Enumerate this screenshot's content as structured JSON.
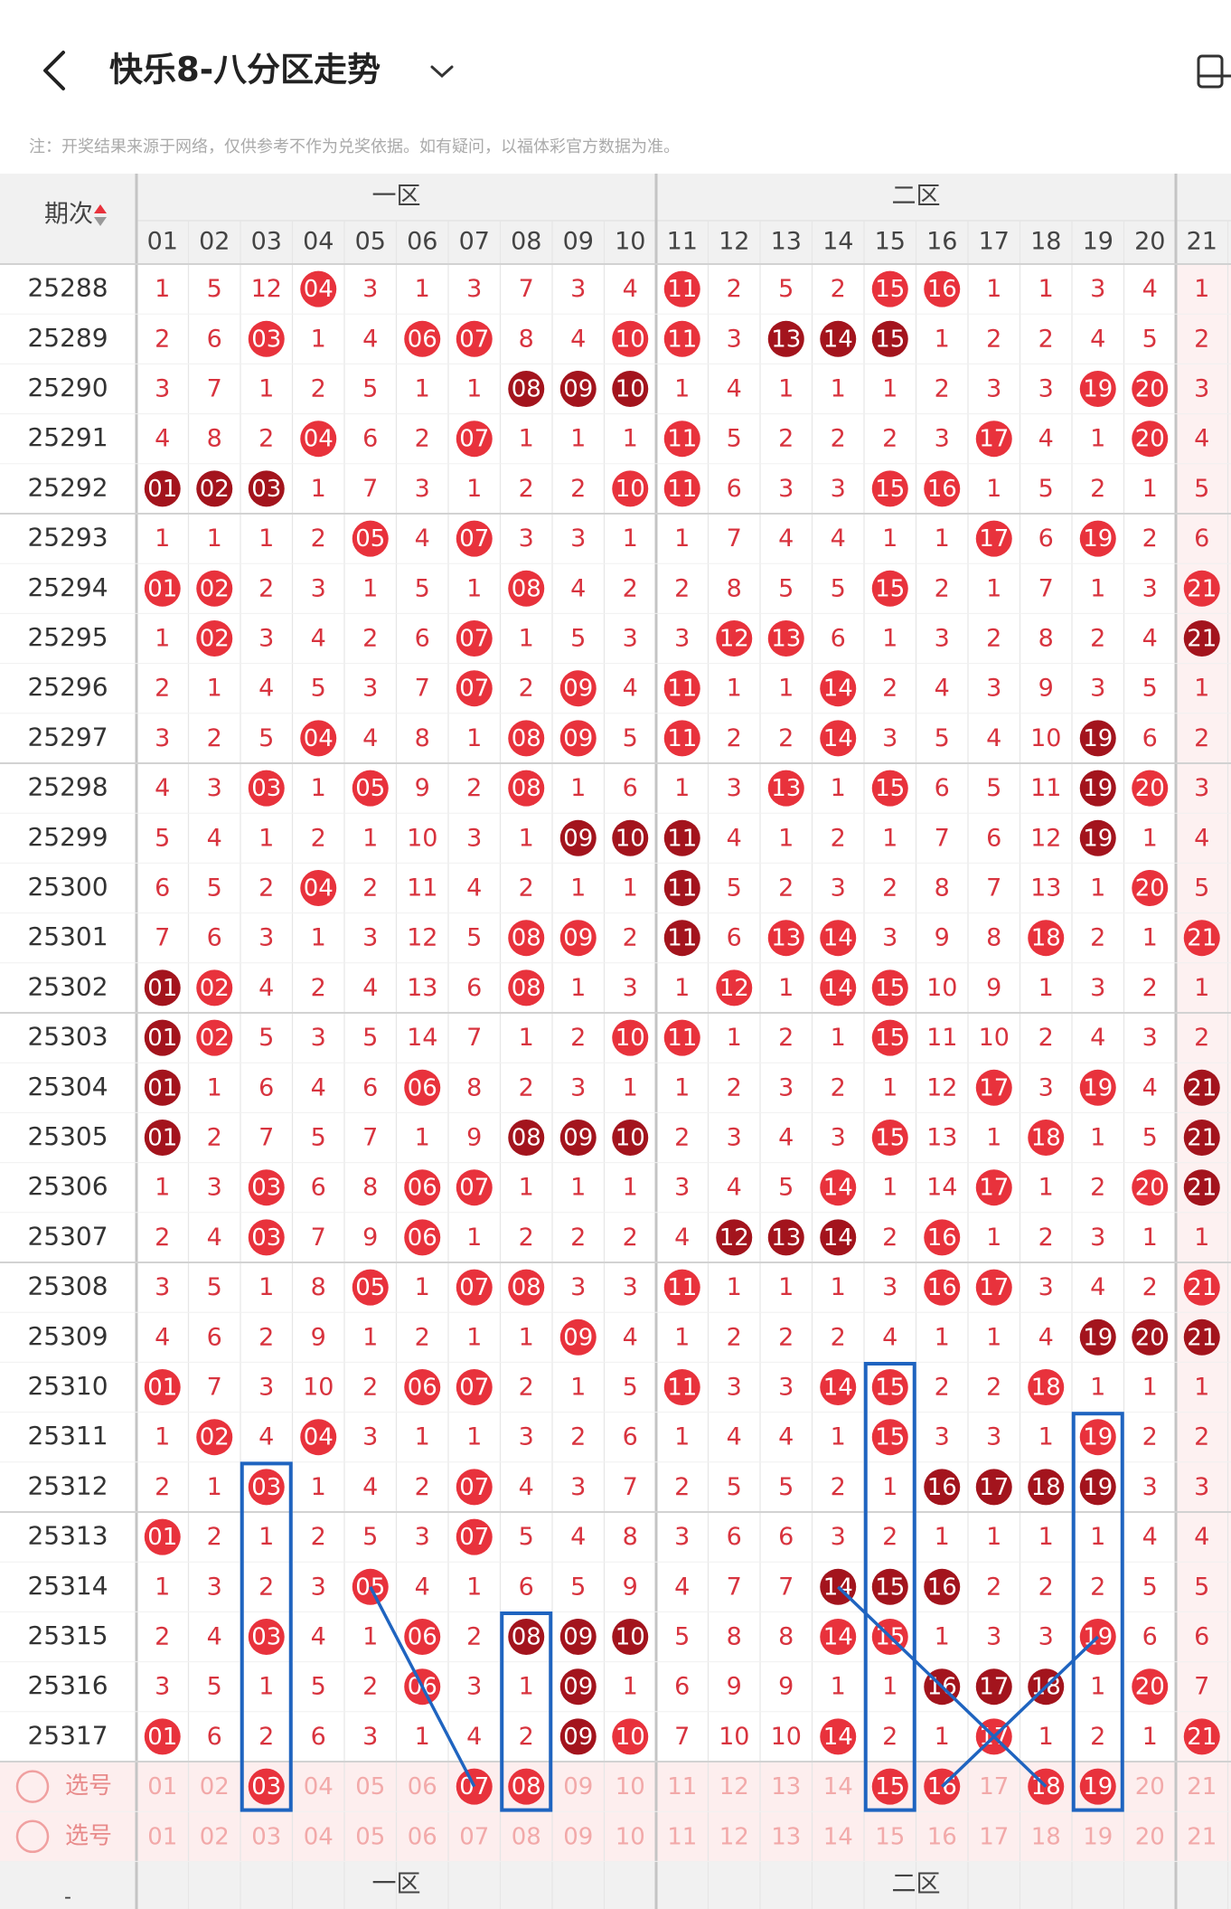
{
  "header": {
    "title": "快乐8-八分区走势"
  },
  "notice": "注：开奖结果来源于网络，仅供参考不作为兑奖依据。如有疑问，以福体彩官方数据为准。",
  "table": {
    "issue_header": "期次",
    "zones": [
      "一区",
      "二区"
    ],
    "columns": [
      "01",
      "02",
      "03",
      "04",
      "05",
      "06",
      "07",
      "08",
      "09",
      "10",
      "11",
      "12",
      "13",
      "14",
      "15",
      "16",
      "17",
      "18",
      "19",
      "20",
      "21"
    ],
    "rows": [
      {
        "issue": "25288",
        "cells": [
          "1",
          "5",
          "12",
          "04",
          "3",
          "1",
          "3",
          "7",
          "3",
          "4",
          "11",
          "2",
          "5",
          "2",
          "15",
          "16",
          "1",
          "1",
          "3",
          "4",
          "1"
        ],
        "dark": []
      },
      {
        "issue": "25289",
        "cells": [
          "2",
          "6",
          "03",
          "1",
          "4",
          "06",
          "07",
          "8",
          "4",
          "10",
          "11",
          "3",
          "13",
          "14",
          "15",
          "1",
          "2",
          "2",
          "4",
          "5",
          "2"
        ],
        "dark": [
          12,
          13,
          14
        ]
      },
      {
        "issue": "25290",
        "cells": [
          "3",
          "7",
          "1",
          "2",
          "5",
          "1",
          "1",
          "08",
          "09",
          "10",
          "1",
          "4",
          "1",
          "1",
          "1",
          "2",
          "3",
          "3",
          "19",
          "20",
          "3"
        ],
        "dark": [
          7,
          8,
          9
        ]
      },
      {
        "issue": "25291",
        "cells": [
          "4",
          "8",
          "2",
          "04",
          "6",
          "2",
          "07",
          "1",
          "1",
          "1",
          "11",
          "5",
          "2",
          "2",
          "2",
          "3",
          "17",
          "4",
          "1",
          "20",
          "4"
        ],
        "dark": []
      },
      {
        "issue": "25292",
        "cells": [
          "01",
          "02",
          "03",
          "1",
          "7",
          "3",
          "1",
          "2",
          "2",
          "10",
          "11",
          "6",
          "3",
          "3",
          "15",
          "16",
          "1",
          "5",
          "2",
          "1",
          "5"
        ],
        "dark": [
          0,
          1,
          2
        ]
      },
      {
        "issue": "25293",
        "cells": [
          "1",
          "1",
          "1",
          "2",
          "05",
          "4",
          "07",
          "3",
          "3",
          "1",
          "1",
          "7",
          "4",
          "4",
          "1",
          "1",
          "17",
          "6",
          "19",
          "2",
          "6"
        ],
        "dark": []
      },
      {
        "issue": "25294",
        "cells": [
          "01",
          "02",
          "2",
          "3",
          "1",
          "5",
          "1",
          "08",
          "4",
          "2",
          "2",
          "8",
          "5",
          "5",
          "15",
          "2",
          "1",
          "7",
          "1",
          "3",
          "21"
        ],
        "dark": []
      },
      {
        "issue": "25295",
        "cells": [
          "1",
          "02",
          "3",
          "4",
          "2",
          "6",
          "07",
          "1",
          "5",
          "3",
          "3",
          "12",
          "13",
          "6",
          "1",
          "3",
          "2",
          "8",
          "2",
          "4",
          "21"
        ],
        "dark": [
          20
        ]
      },
      {
        "issue": "25296",
        "cells": [
          "2",
          "1",
          "4",
          "5",
          "3",
          "7",
          "07",
          "2",
          "09",
          "4",
          "11",
          "1",
          "1",
          "14",
          "2",
          "4",
          "3",
          "9",
          "3",
          "5",
          "1"
        ],
        "dark": []
      },
      {
        "issue": "25297",
        "cells": [
          "3",
          "2",
          "5",
          "04",
          "4",
          "8",
          "1",
          "08",
          "09",
          "5",
          "11",
          "2",
          "2",
          "14",
          "3",
          "5",
          "4",
          "10",
          "19",
          "6",
          "2"
        ],
        "dark": [
          18
        ]
      },
      {
        "issue": "25298",
        "cells": [
          "4",
          "3",
          "03",
          "1",
          "05",
          "9",
          "2",
          "08",
          "1",
          "6",
          "1",
          "3",
          "13",
          "1",
          "15",
          "6",
          "5",
          "11",
          "19",
          "20",
          "3"
        ],
        "dark": [
          18
        ]
      },
      {
        "issue": "25299",
        "cells": [
          "5",
          "4",
          "1",
          "2",
          "1",
          "10",
          "3",
          "1",
          "09",
          "10",
          "11",
          "4",
          "1",
          "2",
          "1",
          "7",
          "6",
          "12",
          "19",
          "1",
          "4"
        ],
        "dark": [
          8,
          9,
          10,
          18
        ]
      },
      {
        "issue": "25300",
        "cells": [
          "6",
          "5",
          "2",
          "04",
          "2",
          "11",
          "4",
          "2",
          "1",
          "1",
          "11",
          "5",
          "2",
          "3",
          "2",
          "8",
          "7",
          "13",
          "1",
          "20",
          "5"
        ],
        "dark": [
          10
        ]
      },
      {
        "issue": "25301",
        "cells": [
          "7",
          "6",
          "3",
          "1",
          "3",
          "12",
          "5",
          "08",
          "09",
          "2",
          "11",
          "6",
          "13",
          "14",
          "3",
          "9",
          "8",
          "18",
          "2",
          "1",
          "21"
        ],
        "dark": [
          10
        ]
      },
      {
        "issue": "25302",
        "cells": [
          "01",
          "02",
          "4",
          "2",
          "4",
          "13",
          "6",
          "08",
          "1",
          "3",
          "1",
          "12",
          "1",
          "14",
          "15",
          "10",
          "9",
          "1",
          "3",
          "2",
          "1"
        ],
        "dark": [
          0
        ]
      },
      {
        "issue": "25303",
        "cells": [
          "01",
          "02",
          "5",
          "3",
          "5",
          "14",
          "7",
          "1",
          "2",
          "10",
          "11",
          "1",
          "2",
          "1",
          "15",
          "11",
          "10",
          "2",
          "4",
          "3",
          "2"
        ],
        "dark": [
          0
        ]
      },
      {
        "issue": "25304",
        "cells": [
          "01",
          "1",
          "6",
          "4",
          "6",
          "06",
          "8",
          "2",
          "3",
          "1",
          "1",
          "2",
          "3",
          "2",
          "1",
          "12",
          "17",
          "3",
          "19",
          "4",
          "21"
        ],
        "dark": [
          0,
          20
        ]
      },
      {
        "issue": "25305",
        "cells": [
          "01",
          "2",
          "7",
          "5",
          "7",
          "1",
          "9",
          "08",
          "09",
          "10",
          "2",
          "3",
          "4",
          "3",
          "15",
          "13",
          "1",
          "18",
          "1",
          "5",
          "21"
        ],
        "dark": [
          0,
          7,
          8,
          9,
          20
        ]
      },
      {
        "issue": "25306",
        "cells": [
          "1",
          "3",
          "03",
          "6",
          "8",
          "06",
          "07",
          "1",
          "1",
          "1",
          "3",
          "4",
          "5",
          "14",
          "1",
          "14",
          "17",
          "1",
          "2",
          "20",
          "21"
        ],
        "dark": [
          20
        ]
      },
      {
        "issue": "25307",
        "cells": [
          "2",
          "4",
          "03",
          "7",
          "9",
          "06",
          "1",
          "2",
          "2",
          "2",
          "4",
          "12",
          "13",
          "14",
          "2",
          "16",
          "1",
          "2",
          "3",
          "1",
          "1"
        ],
        "dark": [
          11,
          12,
          13
        ]
      },
      {
        "issue": "25308",
        "cells": [
          "3",
          "5",
          "1",
          "8",
          "05",
          "1",
          "07",
          "08",
          "3",
          "3",
          "11",
          "1",
          "1",
          "1",
          "3",
          "16",
          "17",
          "3",
          "4",
          "2",
          "21"
        ],
        "dark": []
      },
      {
        "issue": "25309",
        "cells": [
          "4",
          "6",
          "2",
          "9",
          "1",
          "2",
          "1",
          "1",
          "09",
          "4",
          "1",
          "2",
          "2",
          "2",
          "4",
          "1",
          "1",
          "4",
          "19",
          "20",
          "21"
        ],
        "dark": [
          18,
          19,
          20
        ]
      },
      {
        "issue": "25310",
        "cells": [
          "01",
          "7",
          "3",
          "10",
          "2",
          "06",
          "07",
          "2",
          "1",
          "5",
          "11",
          "3",
          "3",
          "14",
          "15",
          "2",
          "2",
          "18",
          "1",
          "1",
          "1"
        ],
        "dark": []
      },
      {
        "issue": "25311",
        "cells": [
          "1",
          "02",
          "4",
          "04",
          "3",
          "1",
          "1",
          "3",
          "2",
          "6",
          "1",
          "4",
          "4",
          "1",
          "15",
          "3",
          "3",
          "1",
          "19",
          "2",
          "2"
        ],
        "dark": []
      },
      {
        "issue": "25312",
        "cells": [
          "2",
          "1",
          "03",
          "1",
          "4",
          "2",
          "07",
          "4",
          "3",
          "7",
          "2",
          "5",
          "5",
          "2",
          "1",
          "16",
          "17",
          "18",
          "19",
          "3",
          "3"
        ],
        "dark": [
          15,
          16,
          17,
          18
        ]
      },
      {
        "issue": "25313",
        "cells": [
          "01",
          "2",
          "1",
          "2",
          "5",
          "3",
          "07",
          "5",
          "4",
          "8",
          "3",
          "6",
          "6",
          "3",
          "2",
          "1",
          "1",
          "1",
          "1",
          "4",
          "4"
        ],
        "dark": []
      },
      {
        "issue": "25314",
        "cells": [
          "1",
          "3",
          "2",
          "3",
          "05",
          "4",
          "1",
          "6",
          "5",
          "9",
          "4",
          "7",
          "7",
          "14",
          "15",
          "16",
          "2",
          "2",
          "2",
          "5",
          "5"
        ],
        "dark": [
          13,
          14,
          15
        ]
      },
      {
        "issue": "25315",
        "cells": [
          "2",
          "4",
          "03",
          "4",
          "1",
          "06",
          "2",
          "08",
          "09",
          "10",
          "5",
          "8",
          "8",
          "14",
          "15",
          "1",
          "3",
          "3",
          "19",
          "6",
          "6"
        ],
        "dark": [
          7,
          8,
          9
        ]
      },
      {
        "issue": "25316",
        "cells": [
          "3",
          "5",
          "1",
          "5",
          "2",
          "06",
          "3",
          "1",
          "09",
          "1",
          "6",
          "9",
          "9",
          "1",
          "1",
          "16",
          "17",
          "18",
          "1",
          "20",
          "7"
        ],
        "dark": [
          8,
          15,
          16,
          17
        ]
      },
      {
        "issue": "25317",
        "cells": [
          "01",
          "6",
          "2",
          "6",
          "3",
          "1",
          "4",
          "2",
          "09",
          "10",
          "7",
          "10",
          "10",
          "14",
          "2",
          "1",
          "17",
          "1",
          "2",
          "1",
          "21"
        ],
        "dark": [
          8
        ]
      }
    ],
    "select_rows": [
      {
        "label": "选号",
        "selected": [
          2,
          6,
          7,
          14,
          15,
          17,
          18
        ]
      },
      {
        "label": "选号",
        "selected": []
      }
    ]
  }
}
